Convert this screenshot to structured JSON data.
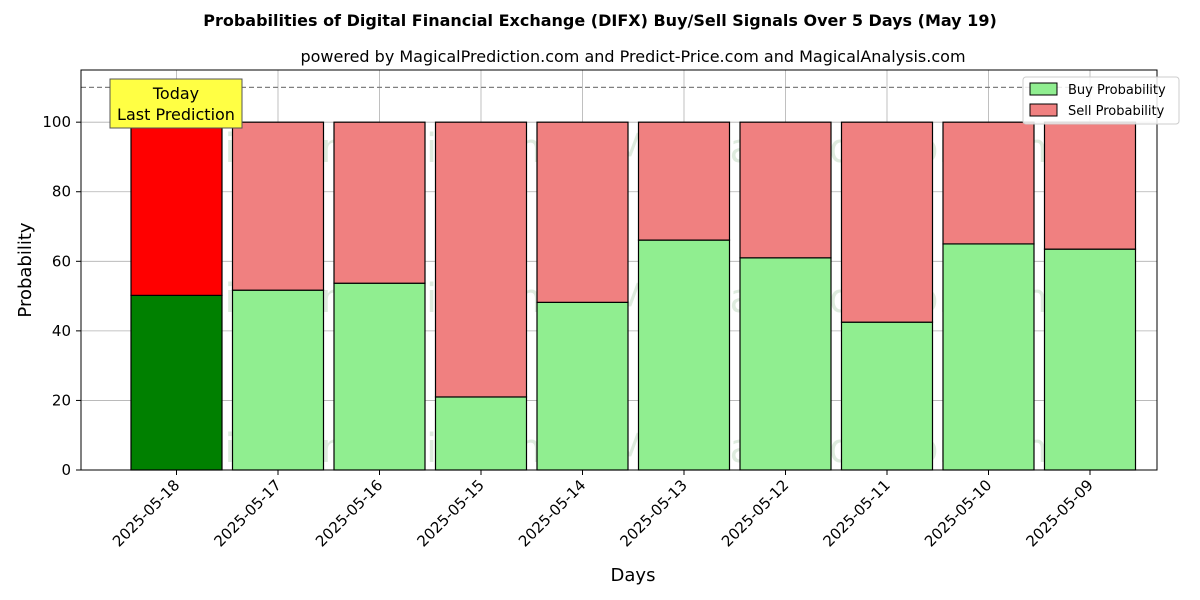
{
  "chart_data": {
    "type": "bar",
    "stacked": true,
    "title": "Probabilities of Digital Financial Exchange (DIFX) Buy/Sell Signals Over 5 Days (May 19)",
    "subtitle": "powered by MagicalPrediction.com and Predict-Price.com and MagicalAnalysis.com",
    "xlabel": "Days",
    "ylabel": "Probability",
    "ylim": [
      0,
      115
    ],
    "yticks": [
      0,
      20,
      40,
      60,
      80,
      100
    ],
    "reference_line": 110,
    "grid": true,
    "legend_position": "top-right",
    "categories": [
      "2025-05-18",
      "2025-05-17",
      "2025-05-16",
      "2025-05-15",
      "2025-05-14",
      "2025-05-13",
      "2025-05-12",
      "2025-05-11",
      "2025-05-10",
      "2025-05-09"
    ],
    "series": [
      {
        "name": "Buy Probability",
        "values": [
          50.2,
          51.7,
          53.7,
          21.0,
          48.2,
          66.1,
          61.0,
          42.5,
          65.0,
          63.5
        ]
      },
      {
        "name": "Sell Probability",
        "values": [
          49.8,
          48.3,
          46.3,
          79.0,
          51.8,
          33.9,
          39.0,
          57.5,
          35.0,
          36.5
        ]
      }
    ],
    "colors": {
      "buy": "#90ee90",
      "sell": "#f08080",
      "buy_today": "#008000",
      "sell_today": "#ff0000",
      "annotation_fill": "#ffff44"
    },
    "annotation": {
      "lines": [
        "Today",
        "Last Prediction"
      ]
    },
    "watermarks": [
      "MagicalAnalysis.com",
      "MagicalPrediction.com"
    ]
  }
}
